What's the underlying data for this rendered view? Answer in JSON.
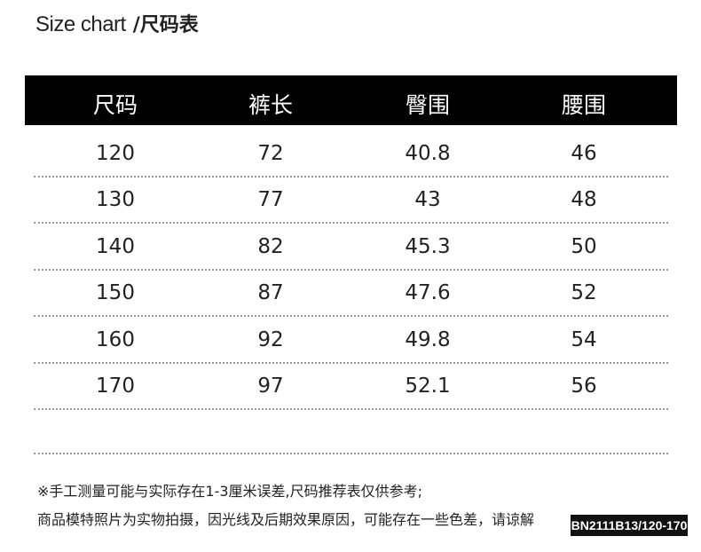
{
  "header": {
    "title": "Size chart",
    "subtitle": "/尺码表"
  },
  "table": {
    "columns": [
      "尺码",
      "裤长",
      "臀围",
      "腰围"
    ],
    "rows": [
      [
        "120",
        "72",
        "40.8",
        "46"
      ],
      [
        "130",
        "77",
        "43",
        "48"
      ],
      [
        "140",
        "82",
        "45.3",
        "50"
      ],
      [
        "150",
        "87",
        "47.6",
        "52"
      ],
      [
        "160",
        "92",
        "49.8",
        "54"
      ],
      [
        "170",
        "97",
        "52.1",
        "56"
      ]
    ]
  },
  "notes": [
    "※手工测量可能与实际存在1-3厘米误差,尺码推荐表仅供参考;",
    "商品模特照片为实物拍摄，因光线及后期效果原因，可能存在一些色差，请谅解"
  ],
  "badge": "BN2111B13/120-170"
}
